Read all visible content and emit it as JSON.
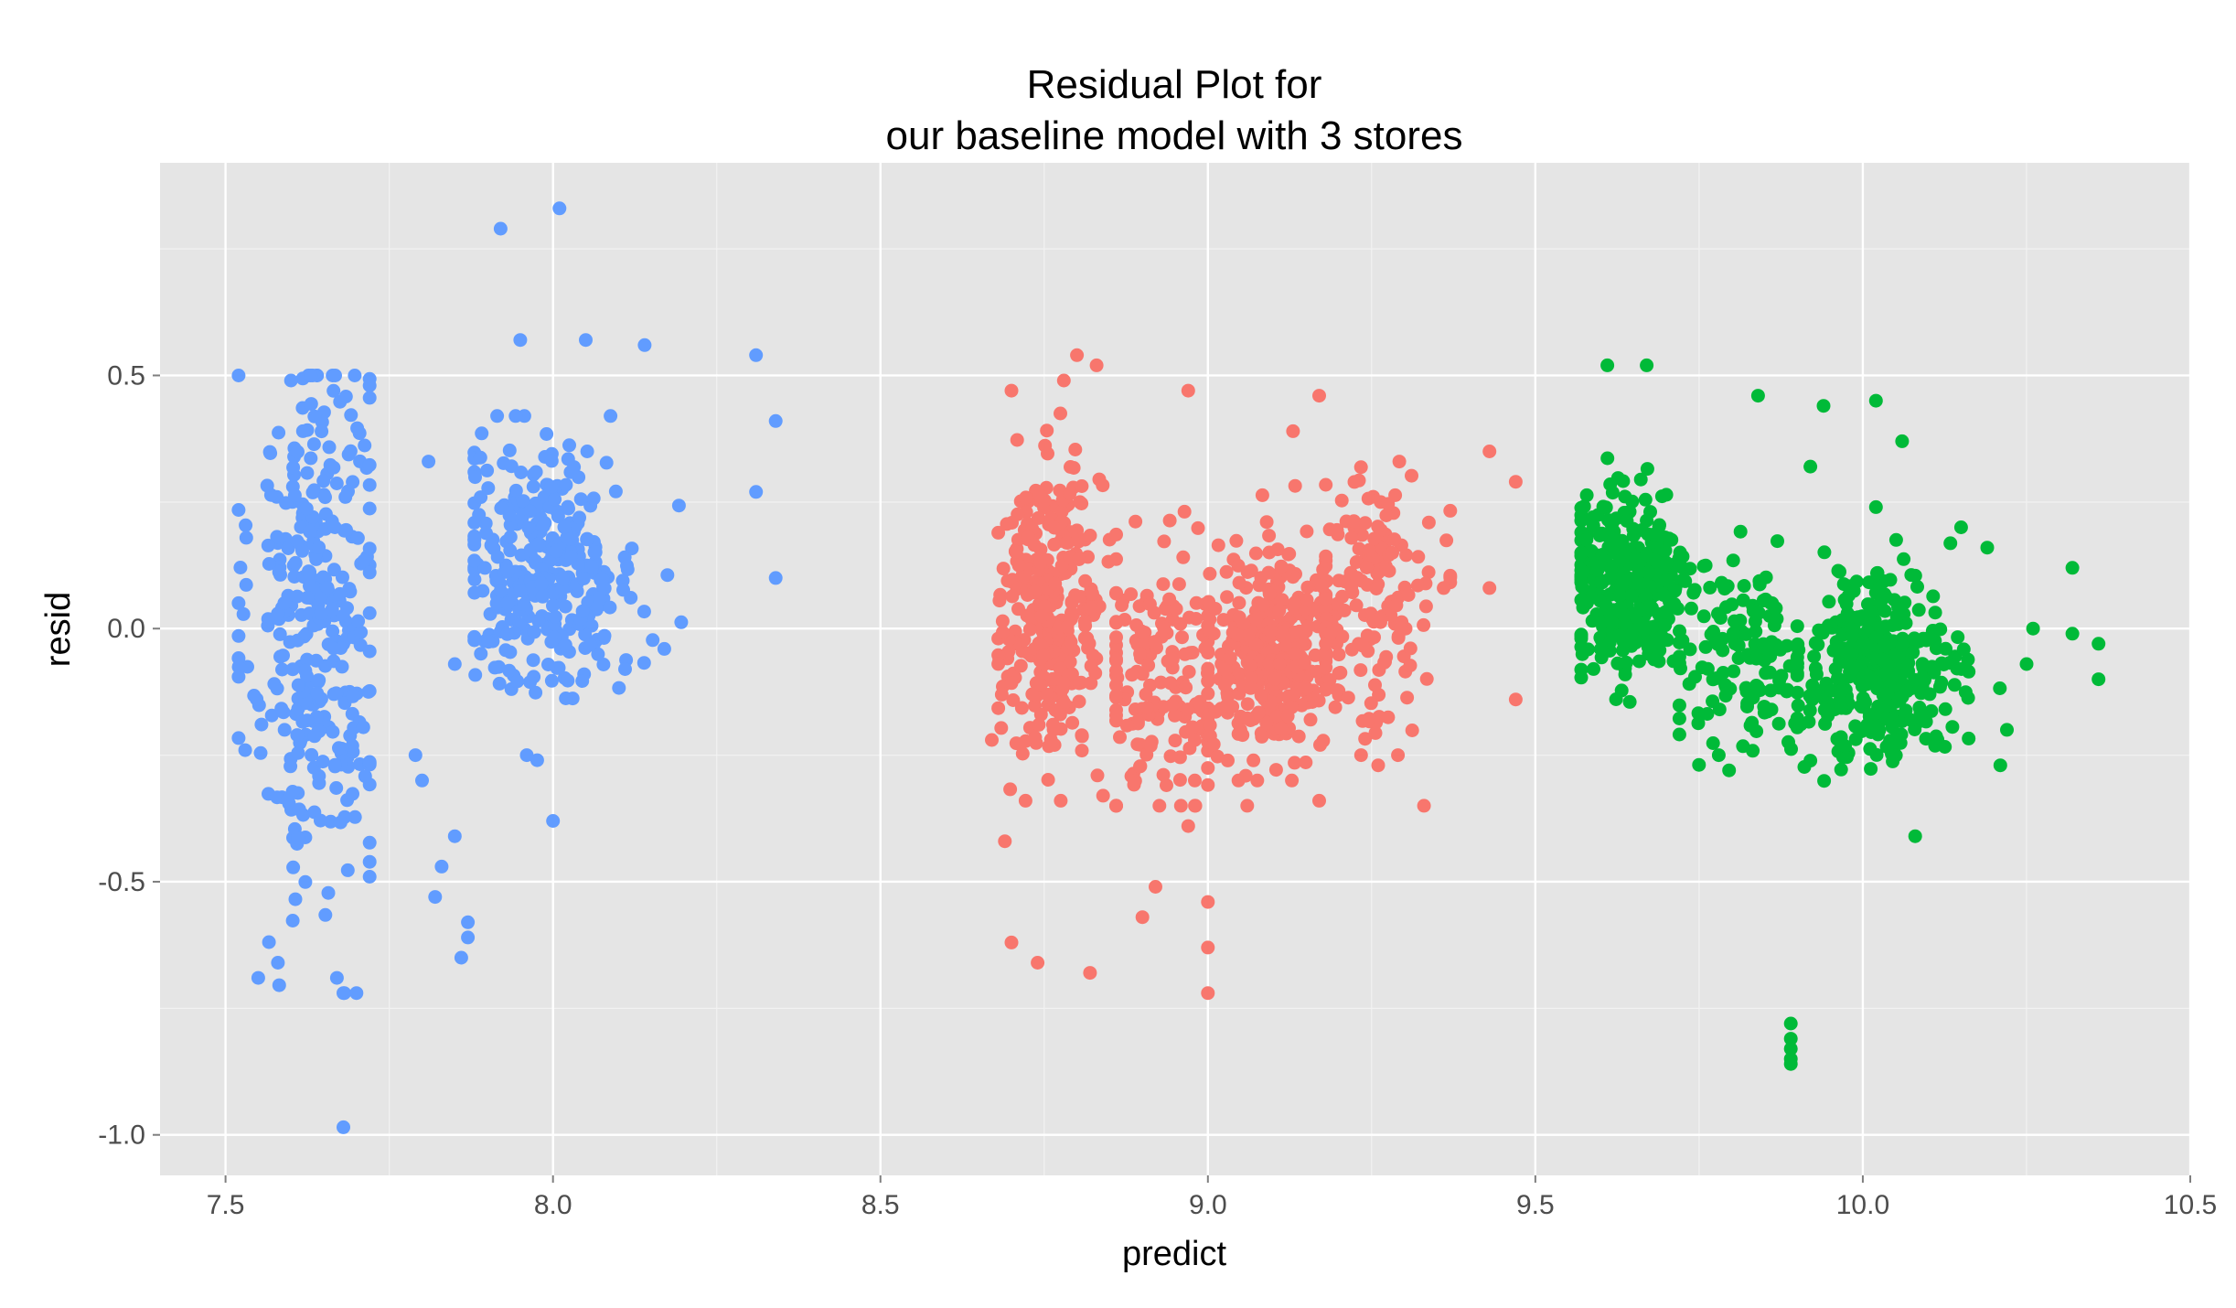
{
  "chart_data": {
    "type": "scatter",
    "title": "Residual Plot for\nour baseline model with 3 stores",
    "xlabel": "predict",
    "ylabel": "resid",
    "xlim": [
      7.4,
      10.5
    ],
    "ylim": [
      -1.08,
      0.92
    ],
    "x_ticks": [
      7.5,
      8.0,
      8.5,
      9.0,
      9.5,
      10.0,
      10.5
    ],
    "x_tick_labels": [
      "7.5",
      "8.0",
      "8.5",
      "9.0",
      "9.5",
      "10.0",
      "10.5"
    ],
    "y_ticks": [
      -1.0,
      -0.5,
      0.0,
      0.5
    ],
    "y_tick_labels": [
      "-1.0",
      "-0.5",
      "0.0",
      "0.5"
    ],
    "grid": true,
    "legend": "none",
    "colors": {
      "panel_background": "#e5e5e5",
      "grid_major": "#ffffff",
      "grid_minor": "#f2f2f2",
      "axis_text": "#4d4d4d"
    },
    "series": [
      {
        "color": "#619cff",
        "clusters": [
          {
            "n": 340,
            "x_range": [
              7.52,
              7.72
            ],
            "y_range": [
              -0.72,
              0.5
            ],
            "cx": 7.64,
            "cy": 0.02,
            "sx": 0.05,
            "sy": 0.28
          },
          {
            "n": 330,
            "x_range": [
              7.88,
              8.24
            ],
            "y_range": [
              -0.26,
              0.42
            ],
            "cx": 7.99,
            "cy": 0.12,
            "sx": 0.07,
            "sy": 0.12
          }
        ],
        "points": [
          [
            7.68,
            -0.985
          ],
          [
            7.92,
            0.79
          ],
          [
            8.01,
            0.83
          ],
          [
            7.95,
            0.57
          ],
          [
            8.05,
            0.57
          ],
          [
            8.14,
            0.56
          ],
          [
            8.31,
            0.54
          ],
          [
            8.34,
            0.41
          ],
          [
            8.34,
            0.1
          ],
          [
            8.31,
            0.27
          ],
          [
            7.86,
            -0.65
          ],
          [
            7.87,
            -0.61
          ],
          [
            7.87,
            -0.58
          ],
          [
            8.0,
            -0.38
          ],
          [
            7.96,
            -0.25
          ],
          [
            7.82,
            -0.53
          ],
          [
            7.83,
            -0.47
          ],
          [
            7.85,
            -0.41
          ],
          [
            7.8,
            -0.3
          ],
          [
            7.79,
            -0.25
          ],
          [
            7.6,
            0.49
          ],
          [
            7.63,
            0.5
          ],
          [
            7.72,
            0.48
          ],
          [
            7.7,
            -0.72
          ],
          [
            7.68,
            -0.72
          ],
          [
            7.67,
            -0.69
          ],
          [
            7.55,
            -0.69
          ],
          [
            7.53,
            -0.24
          ],
          [
            7.58,
            -0.66
          ],
          [
            7.81,
            0.33
          ],
          [
            8.17,
            -0.04
          ],
          [
            8.11,
            -0.08
          ],
          [
            7.85,
            -0.07
          ]
        ]
      },
      {
        "color": "#f8766d",
        "clusters": [
          {
            "n": 330,
            "x_range": [
              8.68,
              8.86
            ],
            "y_range": [
              -0.34,
              0.48
            ],
            "cx": 8.76,
            "cy": 0.03,
            "sx": 0.04,
            "sy": 0.14
          },
          {
            "n": 160,
            "x_range": [
              8.86,
              9.0
            ],
            "y_range": [
              -0.35,
              0.28
            ],
            "cx": 8.93,
            "cy": -0.1,
            "sx": 0.05,
            "sy": 0.14
          },
          {
            "n": 340,
            "x_range": [
              8.98,
              9.2
            ],
            "y_range": [
              -0.3,
              0.36
            ],
            "cx": 9.1,
            "cy": -0.05,
            "sx": 0.05,
            "sy": 0.1
          },
          {
            "n": 150,
            "x_range": [
              9.18,
              9.37
            ],
            "y_range": [
              -0.25,
              0.33
            ],
            "cx": 9.25,
            "cy": 0.05,
            "sx": 0.05,
            "sy": 0.13
          }
        ],
        "points": [
          [
            8.69,
            -0.42
          ],
          [
            8.7,
            -0.62
          ],
          [
            8.74,
            -0.66
          ],
          [
            8.82,
            -0.68
          ],
          [
            8.9,
            -0.57
          ],
          [
            8.92,
            -0.51
          ],
          [
            9.0,
            -0.54
          ],
          [
            9.0,
            -0.63
          ],
          [
            9.0,
            -0.72
          ],
          [
            8.97,
            -0.39
          ],
          [
            8.8,
            0.54
          ],
          [
            8.83,
            0.52
          ],
          [
            8.78,
            0.49
          ],
          [
            8.97,
            0.47
          ],
          [
            9.17,
            0.46
          ],
          [
            9.13,
            0.39
          ],
          [
            9.43,
            0.35
          ],
          [
            9.47,
            0.29
          ],
          [
            9.47,
            -0.14
          ],
          [
            9.33,
            -0.35
          ],
          [
            9.43,
            0.08
          ],
          [
            9.36,
            0.08
          ],
          [
            9.17,
            -0.34
          ],
          [
            9.06,
            -0.35
          ],
          [
            8.84,
            -0.33
          ],
          [
            8.67,
            -0.22
          ],
          [
            9.26,
            -0.27
          ],
          [
            8.7,
            0.47
          ]
        ]
      },
      {
        "color": "#00ba38",
        "clusters": [
          {
            "n": 340,
            "x_range": [
              9.57,
              9.76
            ],
            "y_range": [
              -0.15,
              0.45
            ],
            "cx": 9.64,
            "cy": 0.08,
            "sx": 0.05,
            "sy": 0.1
          },
          {
            "n": 120,
            "x_range": [
              9.72,
              9.92
            ],
            "y_range": [
              -0.28,
              0.2
            ],
            "cx": 9.82,
            "cy": -0.06,
            "sx": 0.05,
            "sy": 0.09
          },
          {
            "n": 360,
            "x_range": [
              9.9,
              10.22
            ],
            "y_range": [
              -0.34,
              0.2
            ],
            "cx": 10.02,
            "cy": -0.08,
            "sx": 0.06,
            "sy": 0.09
          }
        ],
        "points": [
          [
            9.61,
            0.52
          ],
          [
            9.67,
            0.52
          ],
          [
            9.84,
            0.46
          ],
          [
            9.94,
            0.44
          ],
          [
            10.02,
            0.45
          ],
          [
            10.06,
            0.37
          ],
          [
            9.89,
            -0.78
          ],
          [
            9.89,
            -0.81
          ],
          [
            9.89,
            -0.83
          ],
          [
            9.89,
            -0.85
          ],
          [
            9.89,
            -0.86
          ],
          [
            10.08,
            -0.41
          ],
          [
            10.32,
            0.12
          ],
          [
            10.32,
            -0.01
          ],
          [
            10.36,
            -0.03
          ],
          [
            10.36,
            -0.1
          ],
          [
            10.26,
            0.0
          ],
          [
            10.25,
            -0.07
          ],
          [
            10.22,
            -0.2
          ],
          [
            10.21,
            -0.27
          ],
          [
            9.78,
            -0.25
          ],
          [
            9.92,
            0.32
          ],
          [
            10.02,
            0.24
          ],
          [
            10.15,
            0.2
          ],
          [
            10.19,
            0.16
          ]
        ]
      }
    ]
  }
}
